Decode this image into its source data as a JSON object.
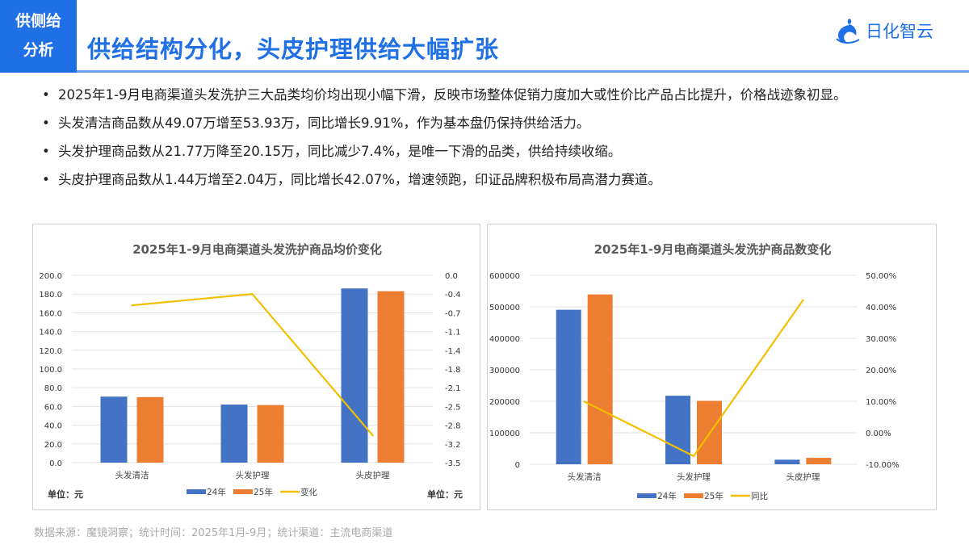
{
  "header": {
    "tag_line1": "供侧给",
    "tag_line2": "分析",
    "title": "供给结构分化，头皮护理供给大幅扩张",
    "logo_text": "日化智云",
    "logo_icon": "wave-logo-icon",
    "accent": "#1f6fe5"
  },
  "bullets": [
    "2025年1-9月电商渠道头发洗护三大品类均价均出现小幅下滑，反映市场整体促销力度加大或性价比产品占比提升，价格战迹象初显。",
    "头发清洁商品数从49.07万增至53.93万，同比增长9.91%，作为基本盘仍保持供给活力。",
    "头发护理商品数从21.77万降至20.15万，同比减少7.4%，是唯一下滑的品类，供给持续收缩。",
    "头皮护理商品数从1.44万增至2.04万，同比增长42.07%，增速领跑，印证品牌积极布局高潜力赛道。"
  ],
  "footer": "数据来源：魔镜洞察；统计时间：2025年1月-9月；统计渠道：主流电商渠道",
  "chart_data": [
    {
      "type": "bar+line",
      "title": "2025年1-9月电商渠道头发洗护商品均价变化",
      "categories": [
        "头发清洁",
        "头发护理",
        "头皮护理"
      ],
      "series": [
        {
          "name": "24年",
          "type": "bar",
          "axis": "left",
          "color": "#4472c4",
          "values": [
            70.5,
            62.0,
            186.0
          ]
        },
        {
          "name": "25年",
          "type": "bar",
          "axis": "left",
          "color": "#ed7d31",
          "values": [
            70.0,
            61.5,
            183.0
          ]
        },
        {
          "name": "变化",
          "type": "line",
          "axis": "right",
          "color": "#f2c000",
          "values": [
            -0.56,
            -0.35,
            -2.99
          ]
        }
      ],
      "left_axis": {
        "ticks": [
          "0.0",
          "20.0",
          "40.0",
          "60.0",
          "80.0",
          "100.0",
          "120.0",
          "140.0",
          "160.0",
          "180.0",
          "200.0"
        ],
        "range": [
          0,
          200
        ]
      },
      "right_axis": {
        "ticks": [
          "-3.5",
          "-3.2",
          "-2.8",
          "-2.5",
          "-2.1",
          "-1.8",
          "-1.4",
          "-1.1",
          "-0.7",
          "-0.4",
          "0.0"
        ],
        "range": [
          -3.5,
          0
        ]
      },
      "unit_left": "单位：元",
      "unit_right": "单位：元",
      "grid": true,
      "legend": "bottom"
    },
    {
      "type": "bar+line",
      "title": "2025年1-9月电商渠道头发洗护商品数变化",
      "categories": [
        "头发清洁",
        "头发护理",
        "头皮护理"
      ],
      "series": [
        {
          "name": "24年",
          "type": "bar",
          "axis": "left",
          "color": "#4472c4",
          "values": [
            490700,
            217700,
            14400
          ]
        },
        {
          "name": "25年",
          "type": "bar",
          "axis": "left",
          "color": "#ed7d31",
          "values": [
            539300,
            201500,
            20400
          ]
        },
        {
          "name": "同比",
          "type": "line",
          "axis": "right",
          "color": "#f2c000",
          "values": [
            9.91,
            -7.4,
            42.07
          ]
        }
      ],
      "left_axis": {
        "ticks": [
          "0",
          "100000",
          "200000",
          "300000",
          "400000",
          "500000",
          "600000"
        ],
        "range": [
          0,
          600000
        ]
      },
      "right_axis": {
        "ticks": [
          "-10.00%",
          "0.00%",
          "10.00%",
          "20.00%",
          "30.00%",
          "40.00%",
          "50.00%"
        ],
        "range": [
          -10,
          50
        ]
      },
      "grid": true,
      "legend": "bottom"
    }
  ]
}
